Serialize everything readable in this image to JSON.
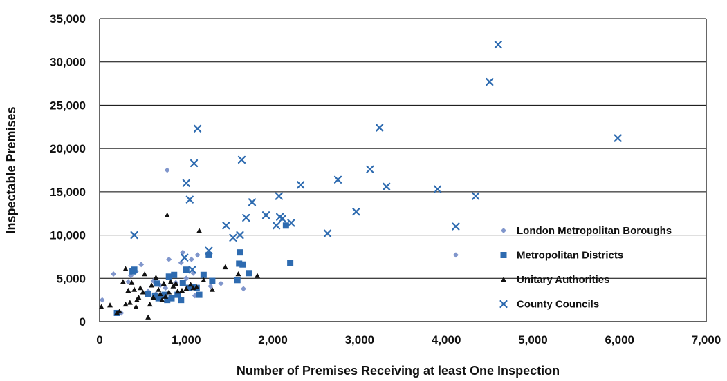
{
  "chart_data": {
    "type": "scatter",
    "title": "",
    "xlabel": "Number of Premises Receiving at least One Inspection",
    "ylabel": "Inspectable Premises",
    "xlim": [
      0,
      7000
    ],
    "ylim": [
      0,
      35000
    ],
    "x_ticks": [
      0,
      1000,
      2000,
      3000,
      4000,
      5000,
      6000,
      7000
    ],
    "y_ticks": [
      0,
      5000,
      10000,
      15000,
      20000,
      25000,
      30000,
      35000
    ],
    "x_tick_labels": [
      "0",
      "1,000",
      "2,000",
      "3,000",
      "4,000",
      "5,000",
      "6,000",
      "7,000"
    ],
    "y_tick_labels": [
      "0",
      "5,000",
      "10,000",
      "15,000",
      "20,000",
      "25,000",
      "30,000",
      "35,000"
    ],
    "grid": "horizontal",
    "legend_position": "bottom-right",
    "series": [
      {
        "name": "London Metropolitan Boroughs",
        "marker": "diamond",
        "color": "#8096cc",
        "points": [
          [
            30,
            2500
          ],
          [
            160,
            5500
          ],
          [
            250,
            1000
          ],
          [
            330,
            4600
          ],
          [
            360,
            5300
          ],
          [
            420,
            5800
          ],
          [
            480,
            6600
          ],
          [
            560,
            3500
          ],
          [
            620,
            4700
          ],
          [
            650,
            3200
          ],
          [
            700,
            4200
          ],
          [
            760,
            3900
          ],
          [
            780,
            17500
          ],
          [
            800,
            7200
          ],
          [
            880,
            4500
          ],
          [
            940,
            6800
          ],
          [
            960,
            8000
          ],
          [
            1000,
            5000
          ],
          [
            1060,
            7200
          ],
          [
            1080,
            5600
          ],
          [
            1100,
            3000
          ],
          [
            1130,
            7700
          ],
          [
            1200,
            5400
          ],
          [
            1280,
            4100
          ],
          [
            1400,
            4400
          ],
          [
            1660,
            3800
          ],
          [
            4110,
            7700
          ]
        ]
      },
      {
        "name": "Metropolitan Districts",
        "marker": "square",
        "color": "#2e6bb0",
        "points": [
          [
            200,
            1000
          ],
          [
            380,
            5800
          ],
          [
            400,
            6000
          ],
          [
            560,
            3200
          ],
          [
            640,
            3000
          ],
          [
            660,
            4400
          ],
          [
            680,
            2700
          ],
          [
            750,
            3100
          ],
          [
            780,
            2500
          ],
          [
            800,
            5200
          ],
          [
            830,
            2700
          ],
          [
            860,
            5400
          ],
          [
            900,
            3100
          ],
          [
            940,
            2500
          ],
          [
            960,
            4500
          ],
          [
            1000,
            6000
          ],
          [
            1030,
            3900
          ],
          [
            1080,
            4000
          ],
          [
            1120,
            3900
          ],
          [
            1150,
            3100
          ],
          [
            1200,
            5400
          ],
          [
            1260,
            7700
          ],
          [
            1300,
            4700
          ],
          [
            1590,
            4800
          ],
          [
            1610,
            6700
          ],
          [
            1620,
            8000
          ],
          [
            1650,
            6600
          ],
          [
            1720,
            5600
          ],
          [
            2150,
            11100
          ],
          [
            2200,
            6800
          ]
        ]
      },
      {
        "name": "Unitary Authorities",
        "marker": "triangle",
        "color": "#111111",
        "points": [
          [
            20,
            1700
          ],
          [
            120,
            1900
          ],
          [
            200,
            1000
          ],
          [
            230,
            1200
          ],
          [
            270,
            4600
          ],
          [
            300,
            6100
          ],
          [
            300,
            2000
          ],
          [
            330,
            3600
          ],
          [
            350,
            2200
          ],
          [
            370,
            4500
          ],
          [
            400,
            3700
          ],
          [
            420,
            1700
          ],
          [
            430,
            2500
          ],
          [
            450,
            2800
          ],
          [
            470,
            3900
          ],
          [
            500,
            3400
          ],
          [
            520,
            5500
          ],
          [
            560,
            500
          ],
          [
            580,
            2000
          ],
          [
            600,
            4200
          ],
          [
            620,
            2800
          ],
          [
            650,
            5100
          ],
          [
            680,
            3700
          ],
          [
            700,
            3200
          ],
          [
            720,
            2500
          ],
          [
            740,
            4400
          ],
          [
            760,
            2900
          ],
          [
            780,
            12300
          ],
          [
            800,
            3400
          ],
          [
            820,
            4600
          ],
          [
            850,
            4100
          ],
          [
            880,
            4400
          ],
          [
            900,
            3500
          ],
          [
            950,
            3600
          ],
          [
            1000,
            3800
          ],
          [
            1050,
            4300
          ],
          [
            1080,
            3900
          ],
          [
            1120,
            4000
          ],
          [
            1150,
            10500
          ],
          [
            1200,
            4800
          ],
          [
            1300,
            3700
          ],
          [
            1450,
            6300
          ],
          [
            1600,
            5500
          ],
          [
            1820,
            5300
          ]
        ]
      },
      {
        "name": "County Councils",
        "marker": "x",
        "color": "#2e6bb0",
        "points": [
          [
            400,
            10000
          ],
          [
            980,
            7400
          ],
          [
            1000,
            16000
          ],
          [
            1040,
            14100
          ],
          [
            1070,
            6000
          ],
          [
            1090,
            18300
          ],
          [
            1130,
            22300
          ],
          [
            1260,
            8200
          ],
          [
            1460,
            11100
          ],
          [
            1540,
            9700
          ],
          [
            1620,
            10000
          ],
          [
            1640,
            18700
          ],
          [
            1690,
            12000
          ],
          [
            1760,
            13800
          ],
          [
            1920,
            12300
          ],
          [
            2040,
            11100
          ],
          [
            2070,
            14500
          ],
          [
            2080,
            12100
          ],
          [
            2110,
            11900
          ],
          [
            2210,
            11400
          ],
          [
            2320,
            15800
          ],
          [
            2630,
            10200
          ],
          [
            2750,
            16400
          ],
          [
            2960,
            12700
          ],
          [
            3120,
            17600
          ],
          [
            3230,
            22400
          ],
          [
            3310,
            15600
          ],
          [
            3900,
            15300
          ],
          [
            4110,
            11000
          ],
          [
            4340,
            14500
          ],
          [
            4500,
            27700
          ],
          [
            4600,
            32000
          ],
          [
            5980,
            21200
          ]
        ]
      }
    ]
  }
}
